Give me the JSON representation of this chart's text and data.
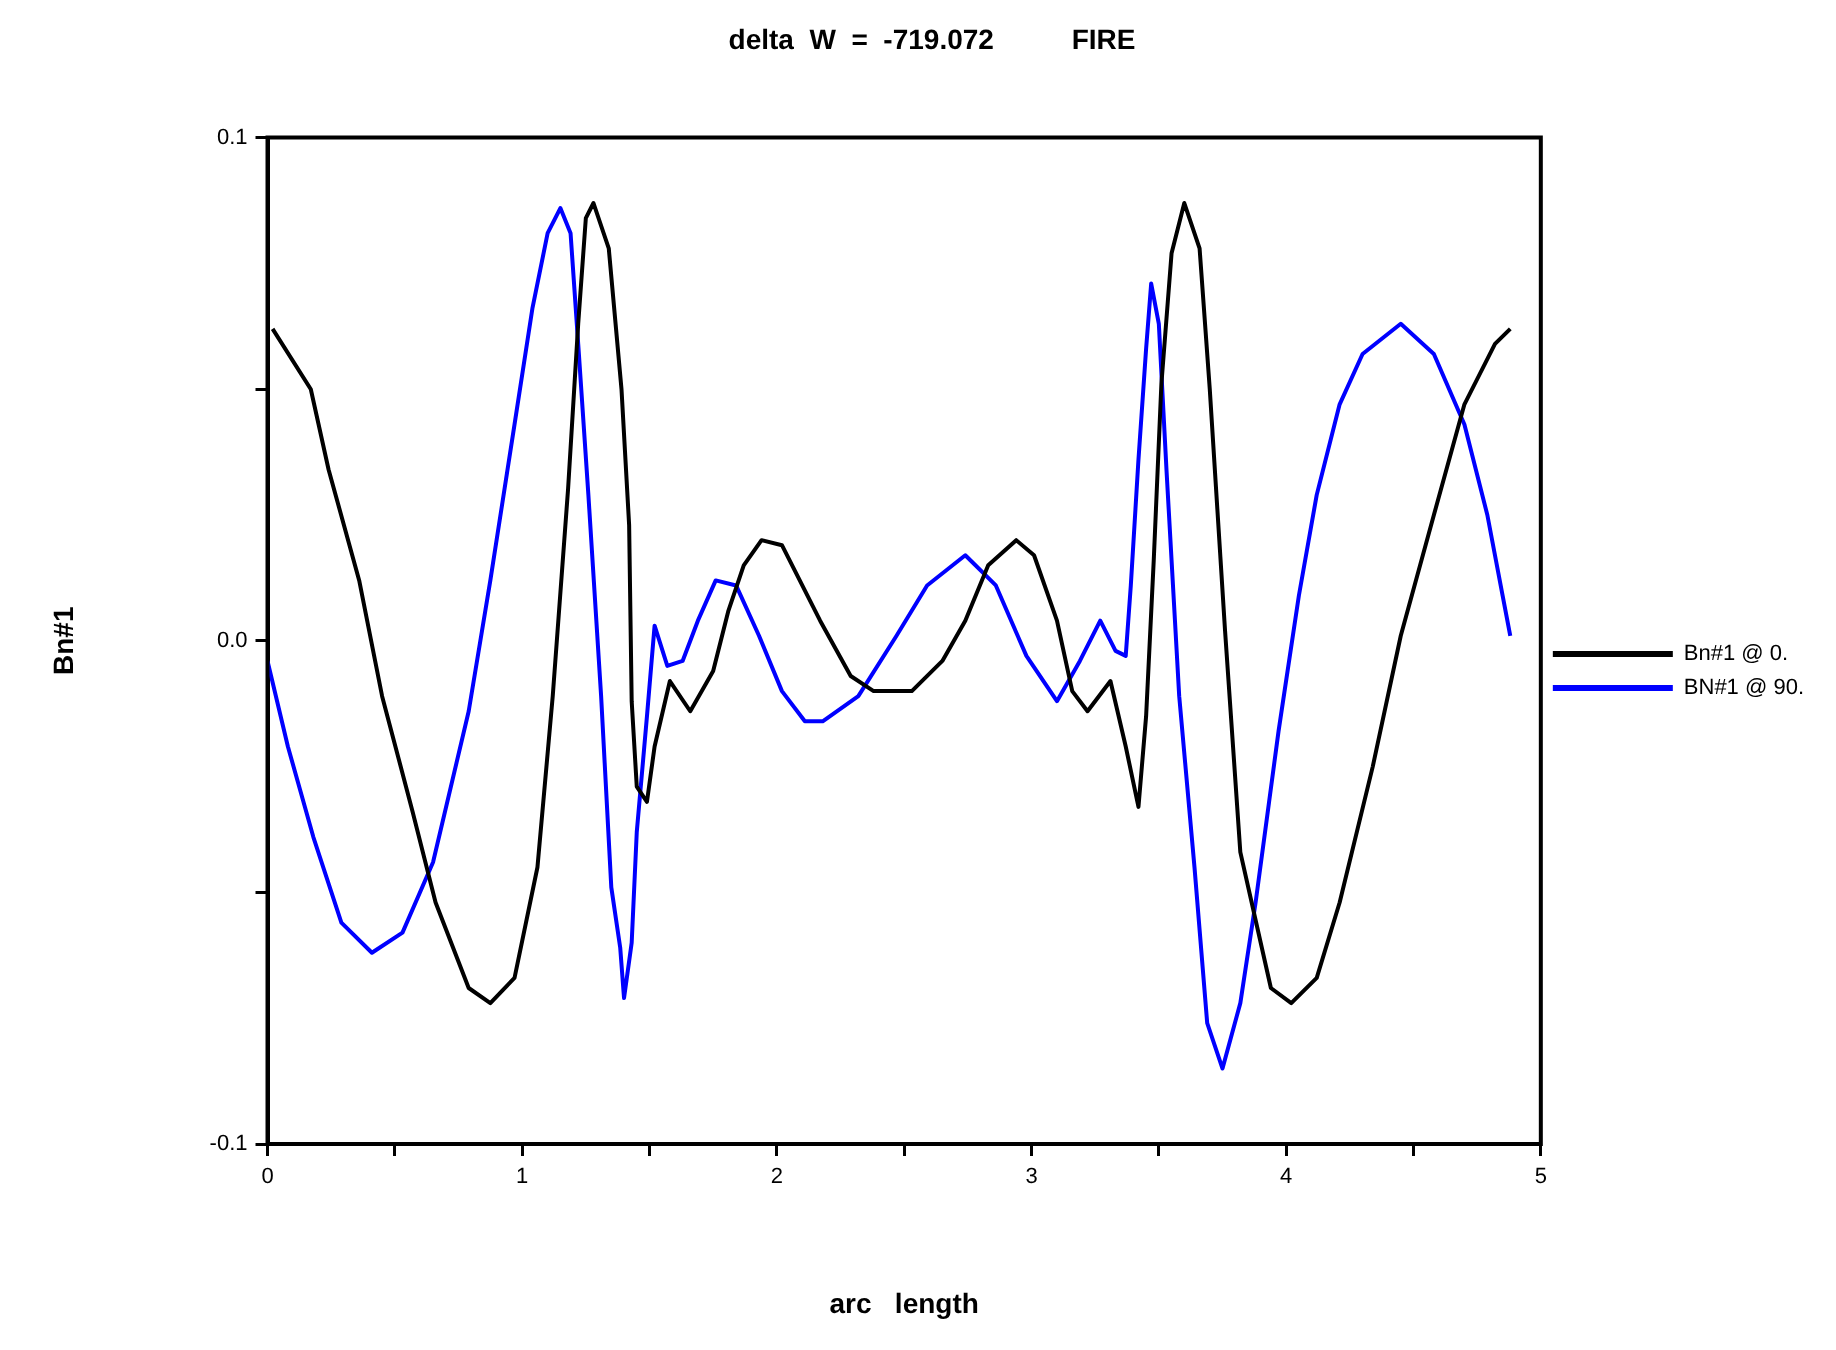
{
  "chart_data": {
    "type": "line",
    "title": "delta  W  =  -719.072          FIRE",
    "xlabel": "arc   length",
    "ylabel": "Bn#1",
    "xlim": [
      0,
      5
    ],
    "ylim": [
      -0.1,
      0.1
    ],
    "xticks": [
      0,
      {
        "value": 0.5,
        "label": null
      },
      1,
      {
        "value": 1.5,
        "label": null
      },
      2,
      {
        "value": 2.5,
        "label": null
      },
      3,
      {
        "value": 3.5,
        "label": null
      },
      4,
      {
        "value": 4.5,
        "label": null
      },
      5
    ],
    "yticks": [
      {
        "value": -0.1,
        "label": "-0.1"
      },
      {
        "value": -0.05,
        "label": null
      },
      {
        "value": 0,
        "label": "0.0"
      },
      {
        "value": 0.05,
        "label": null
      },
      {
        "value": 0.1,
        "label": "0.1"
      }
    ],
    "grid": false,
    "legend": "right",
    "marker": "none",
    "line_style": "solid",
    "series": [
      {
        "name": "Bn#1 @ 0.",
        "color": "#000000",
        "x": [
          0.02,
          0.17,
          0.24,
          0.36,
          0.45,
          0.57,
          0.66,
          0.79,
          0.875,
          0.97,
          1.06,
          1.12,
          1.18,
          1.22,
          1.25,
          1.28,
          1.34,
          1.39,
          1.42,
          1.43,
          1.45,
          1.49,
          1.52,
          1.58,
          1.66,
          1.75,
          1.81,
          1.87,
          1.94,
          2.02,
          2.17,
          2.29,
          2.38,
          2.53,
          2.65,
          2.74,
          2.83,
          2.94,
          3.01,
          3.1,
          3.16,
          3.22,
          3.31,
          3.37,
          3.42,
          3.45,
          3.48,
          3.51,
          3.55,
          3.6,
          3.66,
          3.7,
          3.76,
          3.82,
          3.94,
          4.02,
          4.12,
          4.21,
          4.34,
          4.45,
          4.58,
          4.7,
          4.82,
          4.88
        ],
        "values": [
          0.062,
          0.05,
          0.034,
          0.012,
          -0.011,
          -0.034,
          -0.052,
          -0.069,
          -0.072,
          -0.067,
          -0.045,
          -0.011,
          0.03,
          0.063,
          0.084,
          0.087,
          0.078,
          0.05,
          0.023,
          -0.012,
          -0.029,
          -0.032,
          -0.021,
          -0.008,
          -0.014,
          -0.006,
          0.006,
          0.015,
          0.02,
          0.019,
          0.004,
          -0.007,
          -0.01,
          -0.01,
          -0.004,
          0.004,
          0.015,
          0.02,
          0.017,
          0.004,
          -0.01,
          -0.014,
          -0.008,
          -0.021,
          -0.033,
          -0.015,
          0.016,
          0.051,
          0.077,
          0.087,
          0.078,
          0.05,
          0.002,
          -0.042,
          -0.069,
          -0.072,
          -0.067,
          -0.052,
          -0.025,
          0.001,
          0.025,
          0.047,
          0.059,
          0.062
        ]
      },
      {
        "name": "BN#1 @ 90.",
        "color": "#0000ff",
        "x": [
          0,
          0.08,
          0.18,
          0.29,
          0.41,
          0.53,
          0.65,
          0.79,
          0.875,
          0.97,
          1.04,
          1.1,
          1.15,
          1.19,
          1.22,
          1.26,
          1.31,
          1.35,
          1.385,
          1.4,
          1.43,
          1.45,
          1.49,
          1.52,
          1.57,
          1.63,
          1.69,
          1.76,
          1.84,
          1.93,
          2.02,
          2.11,
          2.18,
          2.32,
          2.47,
          2.59,
          2.74,
          2.86,
          2.98,
          3.1,
          3.19,
          3.27,
          3.33,
          3.37,
          3.39,
          3.42,
          3.45,
          3.47,
          3.5,
          3.53,
          3.58,
          3.64,
          3.69,
          3.75,
          3.82,
          3.88,
          3.97,
          4.05,
          4.12,
          4.21,
          4.3,
          4.45,
          4.58,
          4.7,
          4.79,
          4.85,
          4.88
        ],
        "values": [
          -0.004,
          -0.021,
          -0.039,
          -0.056,
          -0.062,
          -0.058,
          -0.044,
          -0.014,
          0.012,
          0.043,
          0.066,
          0.081,
          0.086,
          0.081,
          0.059,
          0.029,
          -0.011,
          -0.049,
          -0.061,
          -0.071,
          -0.06,
          -0.038,
          -0.015,
          0.003,
          -0.005,
          -0.004,
          0.004,
          0.012,
          0.011,
          0.001,
          -0.01,
          -0.016,
          -0.016,
          -0.011,
          0.001,
          0.011,
          0.017,
          0.011,
          -0.003,
          -0.012,
          -0.004,
          0.004,
          -0.002,
          -0.003,
          0.011,
          0.036,
          0.058,
          0.071,
          0.063,
          0.034,
          -0.011,
          -0.045,
          -0.076,
          -0.085,
          -0.072,
          -0.052,
          -0.018,
          0.009,
          0.029,
          0.047,
          0.057,
          0.063,
          0.057,
          0.043,
          0.025,
          0.009,
          0.001
        ]
      }
    ]
  }
}
